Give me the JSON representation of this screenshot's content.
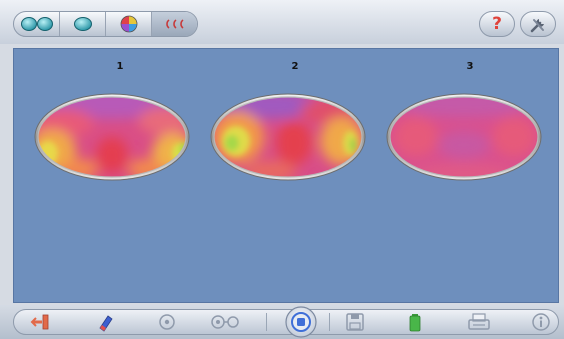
{
  "toolbar": {
    "view_modes": [
      {
        "name": "both-eyes-view",
        "icon": "double-eye-icon"
      },
      {
        "name": "single-eye-view",
        "icon": "single-eye-icon"
      },
      {
        "name": "color-map-view",
        "icon": "color-wheel-icon"
      },
      {
        "name": "rings-view",
        "icon": "rings-icon"
      }
    ],
    "active_mode_index": 3,
    "help_label": "?",
    "tools_icon": "tools-icon"
  },
  "maps": [
    {
      "label": "1"
    },
    {
      "label": "2"
    },
    {
      "label": "3"
    }
  ],
  "bottom_toolbar": {
    "items": [
      {
        "name": "exit-button",
        "icon": "exit-icon"
      },
      {
        "name": "eraser-button",
        "icon": "eraser-icon"
      },
      {
        "name": "target-button",
        "icon": "target-icon"
      },
      {
        "name": "link-button",
        "icon": "link-icon"
      },
      {
        "name": "capture-button",
        "icon": "capture-icon"
      },
      {
        "name": "save-button",
        "icon": "floppy-icon"
      },
      {
        "name": "battery-button",
        "icon": "battery-icon"
      },
      {
        "name": "print-button",
        "icon": "printer-icon"
      },
      {
        "name": "info-button",
        "icon": "info-icon"
      }
    ]
  },
  "colors": {
    "panel_background": "#6e8fbd",
    "help_accent": "#e0423a"
  }
}
